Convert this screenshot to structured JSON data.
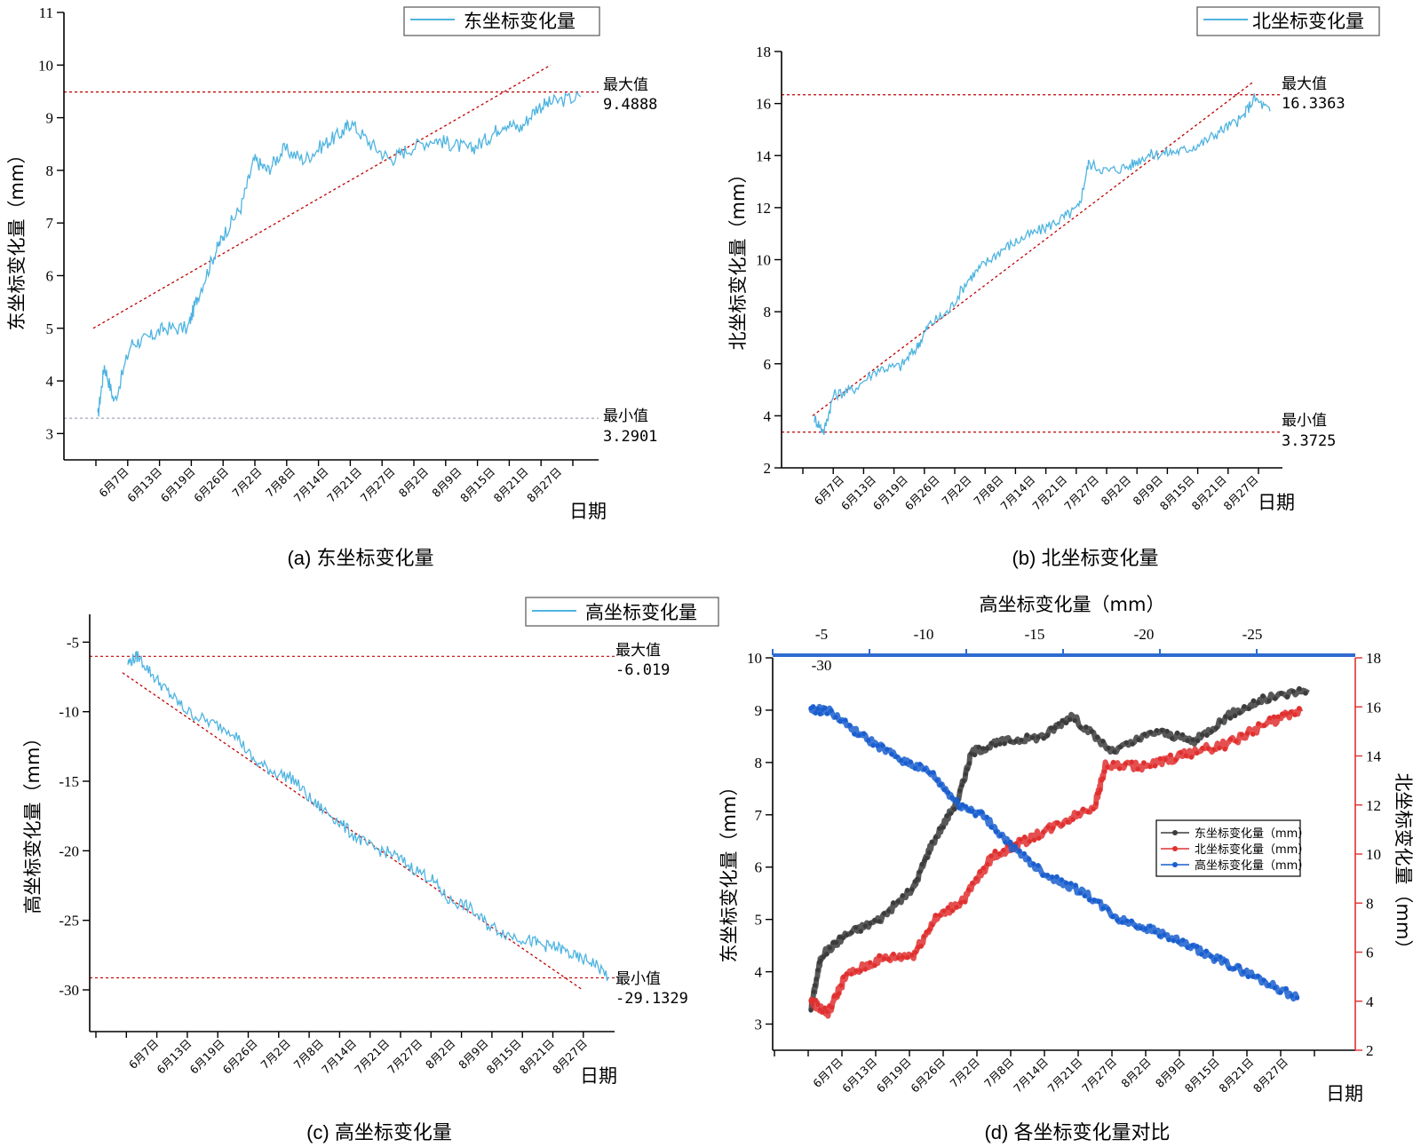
{
  "colors": {
    "series_line": "#4fb4e0",
    "ref_line": "#c00000",
    "east": "#3c3c3c",
    "north": "#e03030",
    "height": "#1a5fcf",
    "top_axis": "#2e6bd0"
  },
  "chart_data": [
    {
      "id": "a",
      "type": "line",
      "caption": "(a) 东坐标变化量",
      "legend": "东坐标变化量",
      "ylabel": "东坐标变化量（mm）",
      "xlabel": "日期",
      "ylim": [
        2.5,
        11
      ],
      "yticks": [
        3,
        4,
        5,
        6,
        7,
        8,
        9,
        10,
        11
      ],
      "xticks": [
        "6月7日",
        "6月13日",
        "6月19日",
        "6月26日",
        "7月2日",
        "7月8日",
        "7月14日",
        "7月21日",
        "7月27日",
        "8月2日",
        "8月9日",
        "8月15日",
        "8月21日",
        "8月27日"
      ],
      "series_points": [
        [
          0,
          3.3
        ],
        [
          0.2,
          4.3
        ],
        [
          0.5,
          3.6
        ],
        [
          1,
          4.7
        ],
        [
          1.5,
          4.8
        ],
        [
          2,
          5.0
        ],
        [
          2.7,
          5.0
        ],
        [
          3,
          5.6
        ],
        [
          3.5,
          6.4
        ],
        [
          3.8,
          6.8
        ],
        [
          4.3,
          7.3
        ],
        [
          4.7,
          8.2
        ],
        [
          5.1,
          8.0
        ],
        [
          5.6,
          8.4
        ],
        [
          6.2,
          8.2
        ],
        [
          6.8,
          8.5
        ],
        [
          7.3,
          8.7
        ],
        [
          7.6,
          8.9
        ],
        [
          8.2,
          8.5
        ],
        [
          8.8,
          8.2
        ],
        [
          9.3,
          8.4
        ],
        [
          10.1,
          8.6
        ],
        [
          10.6,
          8.5
        ],
        [
          11.2,
          8.4
        ],
        [
          11.7,
          8.6
        ],
        [
          12.2,
          8.9
        ],
        [
          12.7,
          8.8
        ],
        [
          13.2,
          9.2
        ],
        [
          13.7,
          9.3
        ],
        [
          14.5,
          9.4
        ]
      ],
      "max_label": "最大值",
      "max_value": "9.4888",
      "min_label": "最小值",
      "min_value": "3.2901",
      "max_line": 9.4888,
      "min_line": 3.2901,
      "trend": [
        5.0,
        10.0
      ]
    },
    {
      "id": "b",
      "type": "line",
      "caption": "(b) 北坐标变化量",
      "legend": "北坐标变化量",
      "ylabel": "北坐标变化量（mm）",
      "xlabel": "日期",
      "ylim": [
        2,
        18
      ],
      "yticks": [
        2,
        4,
        6,
        8,
        10,
        12,
        14,
        16,
        18
      ],
      "xticks": [
        "6月7日",
        "6月13日",
        "6月19日",
        "6月26日",
        "7月2日",
        "7月8日",
        "7月14日",
        "7月21日",
        "7月27日",
        "8月2日",
        "8月9日",
        "8月15日",
        "8月21日",
        "8月27日"
      ],
      "series_points": [
        [
          0,
          3.9
        ],
        [
          0.3,
          3.4
        ],
        [
          0.6,
          4.8
        ],
        [
          1.2,
          5.0
        ],
        [
          2,
          5.8
        ],
        [
          2.7,
          5.9
        ],
        [
          3.2,
          6.6
        ],
        [
          3.6,
          7.5
        ],
        [
          4.2,
          8.0
        ],
        [
          4.8,
          9.2
        ],
        [
          5.3,
          9.8
        ],
        [
          5.9,
          10.4
        ],
        [
          6.5,
          10.8
        ],
        [
          7.2,
          11.2
        ],
        [
          7.8,
          11.6
        ],
        [
          8.3,
          12.0
        ],
        [
          8.6,
          13.7
        ],
        [
          9.2,
          13.4
        ],
        [
          9.9,
          13.6
        ],
        [
          10.4,
          14.0
        ],
        [
          11,
          14.1
        ],
        [
          11.6,
          14.2
        ],
        [
          12.2,
          14.5
        ],
        [
          12.8,
          15.0
        ],
        [
          13.4,
          15.4
        ],
        [
          13.8,
          16.2
        ],
        [
          14.3,
          15.7
        ]
      ],
      "max_label": "最大值",
      "max_value": "16.3363",
      "min_label": "最小值",
      "min_value": "3.3725",
      "max_line": 16.3363,
      "min_line": 3.3725,
      "trend": [
        4.0,
        16.8
      ]
    },
    {
      "id": "c",
      "type": "line",
      "caption": "(c) 高坐标变化量",
      "legend": "高坐标变化量",
      "ylabel": "高坐标变化量（mm）",
      "xlabel": "日期",
      "ylim": [
        -33,
        -3
      ],
      "yticks": [
        -5,
        -10,
        -15,
        -20,
        -25,
        -30
      ],
      "xticks": [
        "6月7日",
        "6月13日",
        "6月19日",
        "6月26日",
        "7月2日",
        "7月8日",
        "7月14日",
        "7月21日",
        "7月27日",
        "8月2日",
        "8月9日",
        "8月15日",
        "8月21日",
        "8月27日"
      ],
      "series_points": [
        [
          0,
          -6.5
        ],
        [
          0.3,
          -6.0
        ],
        [
          0.8,
          -7.5
        ],
        [
          1.3,
          -8.8
        ],
        [
          1.8,
          -10.0
        ],
        [
          2.5,
          -10.8
        ],
        [
          3.2,
          -11.4
        ],
        [
          3.8,
          -13.5
        ],
        [
          4.4,
          -14.3
        ],
        [
          5,
          -14.8
        ],
        [
          5.6,
          -16.5
        ],
        [
          6.2,
          -17.5
        ],
        [
          6.8,
          -18.8
        ],
        [
          7.4,
          -19.8
        ],
        [
          8,
          -20.2
        ],
        [
          8.6,
          -21.2
        ],
        [
          9.2,
          -22.0
        ],
        [
          9.7,
          -23.5
        ],
        [
          10.3,
          -24.0
        ],
        [
          10.9,
          -25.3
        ],
        [
          11.5,
          -26.0
        ],
        [
          12.1,
          -26.4
        ],
        [
          12.6,
          -26.8
        ],
        [
          13.1,
          -27.0
        ],
        [
          13.6,
          -27.7
        ],
        [
          14.1,
          -28.0
        ],
        [
          14.6,
          -29.1
        ]
      ],
      "max_label": "最大值",
      "max_value": "-6.019",
      "min_label": "最小值",
      "min_value": "-29.1329",
      "max_line": -6.019,
      "min_line": -29.1329,
      "trend": [
        -7.2,
        -30.0
      ]
    },
    {
      "id": "d",
      "type": "scatter",
      "caption": "(d) 各坐标变化量对比",
      "xlabel": "日期",
      "ylabel_left": "东坐标变化量（mm）",
      "ylabel_right": "北坐标变化量（mm）",
      "xlabel_top": "高坐标变化量（mm）",
      "ylim_left": [
        2.5,
        10
      ],
      "yticks_left": [
        3,
        4,
        5,
        6,
        7,
        8,
        9,
        10
      ],
      "ylim_right": [
        2,
        18
      ],
      "yticks_right": [
        2,
        4,
        6,
        8,
        10,
        12,
        14,
        16,
        18
      ],
      "xticks_top": [
        "-5",
        "-10",
        "-15",
        "-20",
        "-25",
        "-30"
      ],
      "xticks": [
        "6月7日",
        "6月13日",
        "6月19日",
        "6月26日",
        "7月2日",
        "7月8日",
        "7月14日",
        "7月21日",
        "7月27日",
        "8月2日",
        "8月9日",
        "8月15日",
        "8月21日",
        "8月27日"
      ],
      "legend": [
        "东坐标变化量（mm）",
        "北坐标变化量（mm）",
        "高坐标变化量（mm）"
      ],
      "series": [
        {
          "name": "东坐标变化量（mm）",
          "axis": "left",
          "points": [
            [
              0,
              3.3
            ],
            [
              0.3,
              4.3
            ],
            [
              1,
              4.7
            ],
            [
              2,
              5.0
            ],
            [
              3,
              5.6
            ],
            [
              3.5,
              6.4
            ],
            [
              4.3,
              7.3
            ],
            [
              4.7,
              8.2
            ],
            [
              5.6,
              8.4
            ],
            [
              6.8,
              8.5
            ],
            [
              7.6,
              8.9
            ],
            [
              8.8,
              8.2
            ],
            [
              10.1,
              8.6
            ],
            [
              11.2,
              8.4
            ],
            [
              12.2,
              8.9
            ],
            [
              13.2,
              9.2
            ],
            [
              14.5,
              9.4
            ]
          ]
        },
        {
          "name": "北坐标变化量（mm）",
          "axis": "right",
          "points": [
            [
              0,
              4.0
            ],
            [
              0.5,
              3.5
            ],
            [
              1,
              5.0
            ],
            [
              2,
              5.7
            ],
            [
              3,
              5.9
            ],
            [
              3.6,
              7.3
            ],
            [
              4.5,
              8.2
            ],
            [
              5.3,
              9.9
            ],
            [
              6.2,
              10.5
            ],
            [
              7.2,
              11.2
            ],
            [
              8.3,
              12.0
            ],
            [
              8.6,
              13.6
            ],
            [
              9.9,
              13.6
            ],
            [
              11,
              14.1
            ],
            [
              12.2,
              14.5
            ],
            [
              13.4,
              15.4
            ],
            [
              14.3,
              15.8
            ]
          ]
        },
        {
          "name": "高坐标变化量（mm）",
          "axis": "left",
          "points": [
            [
              0,
              9.0
            ],
            [
              0.5,
              9.0
            ],
            [
              1.5,
              8.5
            ],
            [
              2.5,
              8.1
            ],
            [
              3.5,
              7.8
            ],
            [
              4.3,
              7.2
            ],
            [
              5,
              7.0
            ],
            [
              6,
              6.3
            ],
            [
              7,
              5.8
            ],
            [
              8,
              5.5
            ],
            [
              9,
              5.0
            ],
            [
              10,
              4.8
            ],
            [
              11,
              4.5
            ],
            [
              12,
              4.2
            ],
            [
              13,
              3.9
            ],
            [
              14.2,
              3.5
            ]
          ]
        }
      ]
    }
  ]
}
